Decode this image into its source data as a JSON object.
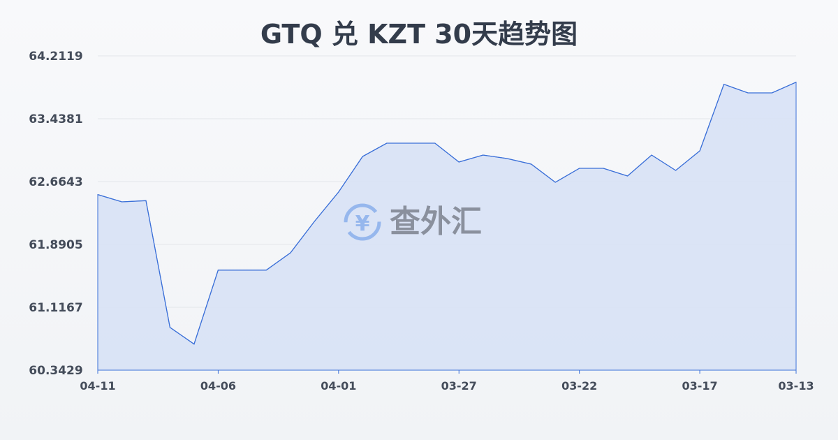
{
  "title": "GTQ 兑 KZT 30天趋势图",
  "watermark": "查外汇",
  "chart_data": {
    "type": "area",
    "title": "GTQ 兑 KZT 30天趋势图",
    "xlabel": "",
    "ylabel": "",
    "x": [
      "04-11",
      "04-10",
      "04-09",
      "04-08",
      "04-07",
      "04-06",
      "04-05",
      "04-04",
      "04-03",
      "04-02",
      "04-01",
      "03-31",
      "03-30",
      "03-29",
      "03-28",
      "03-27",
      "03-26",
      "03-25",
      "03-24",
      "03-23",
      "03-22",
      "03-21",
      "03-20",
      "03-19",
      "03-18",
      "03-17",
      "03-16",
      "03-15",
      "03-14",
      "03-13"
    ],
    "values": [
      62.504,
      62.415,
      62.43,
      60.869,
      60.664,
      61.575,
      61.575,
      61.575,
      61.787,
      62.174,
      62.535,
      62.974,
      63.137,
      63.137,
      63.137,
      62.905,
      62.991,
      62.948,
      62.879,
      62.656,
      62.828,
      62.828,
      62.733,
      62.991,
      62.802,
      63.043,
      63.862,
      63.756,
      63.756,
      63.888
    ],
    "x_tick_labels": [
      "04-11",
      "04-06",
      "04-01",
      "03-27",
      "03-22",
      "03-17",
      "03-13"
    ],
    "y_tick_labels": [
      "64.2119",
      "63.4381",
      "62.6643",
      "61.8905",
      "61.1167",
      "60.3429"
    ],
    "ylim": [
      60.3429,
      64.2119
    ],
    "grid": true,
    "legend": "none",
    "colors": {
      "line": "#3a6fd8",
      "fill": "#d6e1f6",
      "grid": "#e3e6ea",
      "text": "#333c4b"
    }
  }
}
